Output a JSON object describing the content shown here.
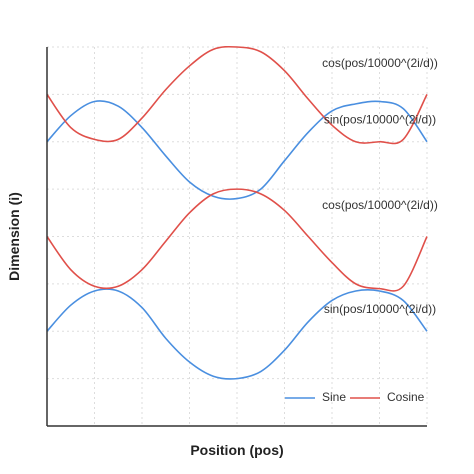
{
  "chart_data": {
    "type": "line",
    "title": "",
    "xlabel": "Position (pos)",
    "ylabel": "Dimension (i)",
    "grid": true,
    "legend": {
      "placement": "bottom-right",
      "entries": [
        {
          "label": "Sine",
          "color": "#4a8fe0"
        },
        {
          "label": "Cosine",
          "color": "#e0504a"
        }
      ]
    },
    "xlim": [
      0,
      8
    ],
    "ylim": [
      0,
      8
    ],
    "series": [
      {
        "name": "Sine",
        "color": "#4a8fe0",
        "x": [
          0,
          0.5,
          1,
          1.5,
          2,
          2.5,
          3,
          3.5,
          4,
          4.5,
          5,
          5.5,
          6,
          6.5,
          7,
          7.5,
          8
        ],
        "y": [
          6.0,
          6.55,
          6.85,
          6.75,
          6.3,
          5.7,
          5.15,
          4.85,
          4.8,
          5.0,
          5.6,
          6.2,
          6.65,
          6.8,
          6.85,
          6.7,
          6.0
        ]
      },
      {
        "name": "Cosine",
        "color": "#e0504a",
        "x": [
          0,
          0.5,
          1,
          1.5,
          2,
          2.5,
          3,
          3.5,
          4,
          4.5,
          5,
          5.5,
          6,
          6.5,
          7,
          7.5,
          8
        ],
        "y": [
          7.0,
          6.3,
          6.05,
          6.05,
          6.5,
          7.1,
          7.6,
          7.95,
          8.0,
          7.9,
          7.5,
          6.9,
          6.35,
          6.0,
          6.0,
          6.05,
          7.0
        ]
      },
      {
        "name": "Sine",
        "color": "#4a8fe0",
        "x": [
          0,
          0.5,
          1,
          1.5,
          2,
          2.5,
          3,
          3.5,
          4,
          4.5,
          5,
          5.5,
          6,
          6.5,
          7,
          7.5,
          8
        ],
        "y": [
          2.0,
          2.55,
          2.85,
          2.85,
          2.5,
          1.85,
          1.35,
          1.05,
          1.0,
          1.15,
          1.6,
          2.2,
          2.65,
          2.85,
          2.85,
          2.65,
          2.0
        ]
      },
      {
        "name": "Cosine",
        "color": "#e0504a",
        "x": [
          0,
          0.5,
          1,
          1.5,
          2,
          2.5,
          3,
          3.5,
          4,
          4.5,
          5,
          5.5,
          6,
          6.5,
          7,
          7.5,
          8
        ],
        "y": [
          4.0,
          3.3,
          2.95,
          2.95,
          3.3,
          3.9,
          4.5,
          4.9,
          5.0,
          4.9,
          4.55,
          4.0,
          3.45,
          3.0,
          2.9,
          2.95,
          4.0
        ]
      }
    ],
    "annotations": [
      {
        "text": "cos(pos/10000^(2i/d))",
        "x": 7.0,
        "y": 7.65
      },
      {
        "text": "sin(pos/10000^(2i/d))",
        "x": 7.0,
        "y": 6.45
      },
      {
        "text": "cos(pos/10000^(2i/d))",
        "x": 7.0,
        "y": 4.65
      },
      {
        "text": "sin(pos/10000^(2i/d))",
        "x": 7.0,
        "y": 2.45
      }
    ]
  }
}
